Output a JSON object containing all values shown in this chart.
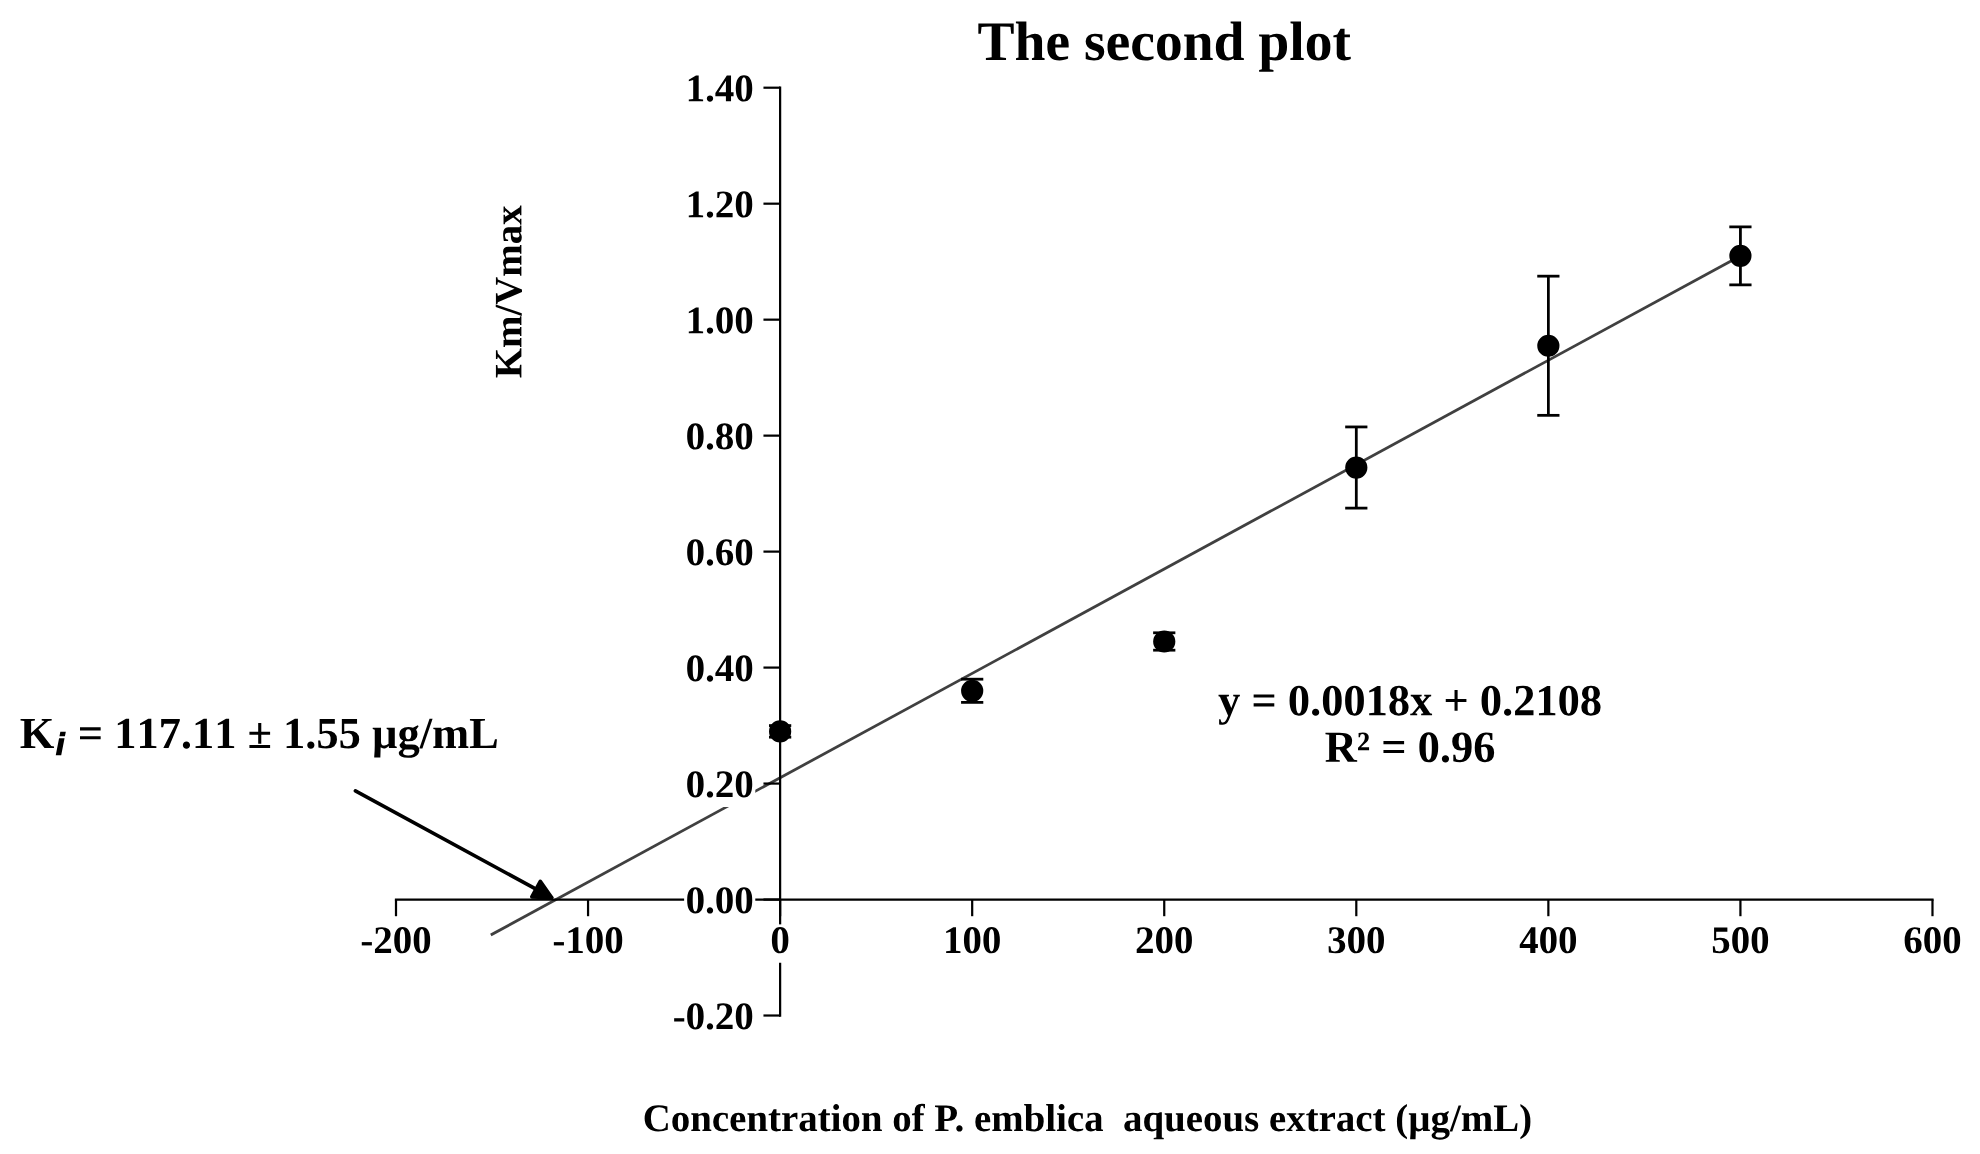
{
  "chart_data": {
    "type": "scatter",
    "title": "The second plot",
    "xlabel": "Concentration of P. emblica  aqueous extract (µg/mL)",
    "ylabel": "Km/Vmax",
    "xlim": [
      -200,
      600
    ],
    "xticks": [
      -200,
      -100,
      0,
      100,
      200,
      300,
      400,
      500,
      600
    ],
    "ylim": [
      -0.2,
      1.4
    ],
    "yticks": [
      {
        "value": -0.2,
        "label": "-0.20"
      },
      {
        "value": 0,
        "label": "0.00"
      },
      {
        "value": 0.2,
        "label": "0.20"
      },
      {
        "value": 0.4,
        "label": "0.40"
      },
      {
        "value": 0.6,
        "label": "0.60"
      },
      {
        "value": 0.8,
        "label": "0.80"
      },
      {
        "value": 1.0,
        "label": "1.00"
      },
      {
        "value": 1.2,
        "label": "1.20"
      },
      {
        "value": 1.4,
        "label": "1.40"
      }
    ],
    "grid": false,
    "legend": false,
    "series": [
      {
        "marker": "circle",
        "color": "#000000",
        "x": [
          0,
          100,
          200,
          300,
          400,
          500
        ],
        "values": [
          0.29,
          0.36,
          0.445,
          0.745,
          0.955,
          1.11
        ],
        "errors": [
          0.01,
          0.02,
          0.015,
          0.07,
          0.12,
          0.05
        ]
      },
      {
        "type": "line",
        "marker": "none",
        "color": "#404040",
        "x": [
          -150,
          500
        ],
        "values": [
          -0.06,
          1.11
        ],
        "line_style": "solid"
      }
    ],
    "annotations": [
      "y = 0.0018x + 0.2108\nR² = 0.96",
      {
        "text": "K$_{i}$ = 117.11 ± 1.55 µg/mL",
        "x": -117.11,
        "y": 0
      }
    ]
  }
}
